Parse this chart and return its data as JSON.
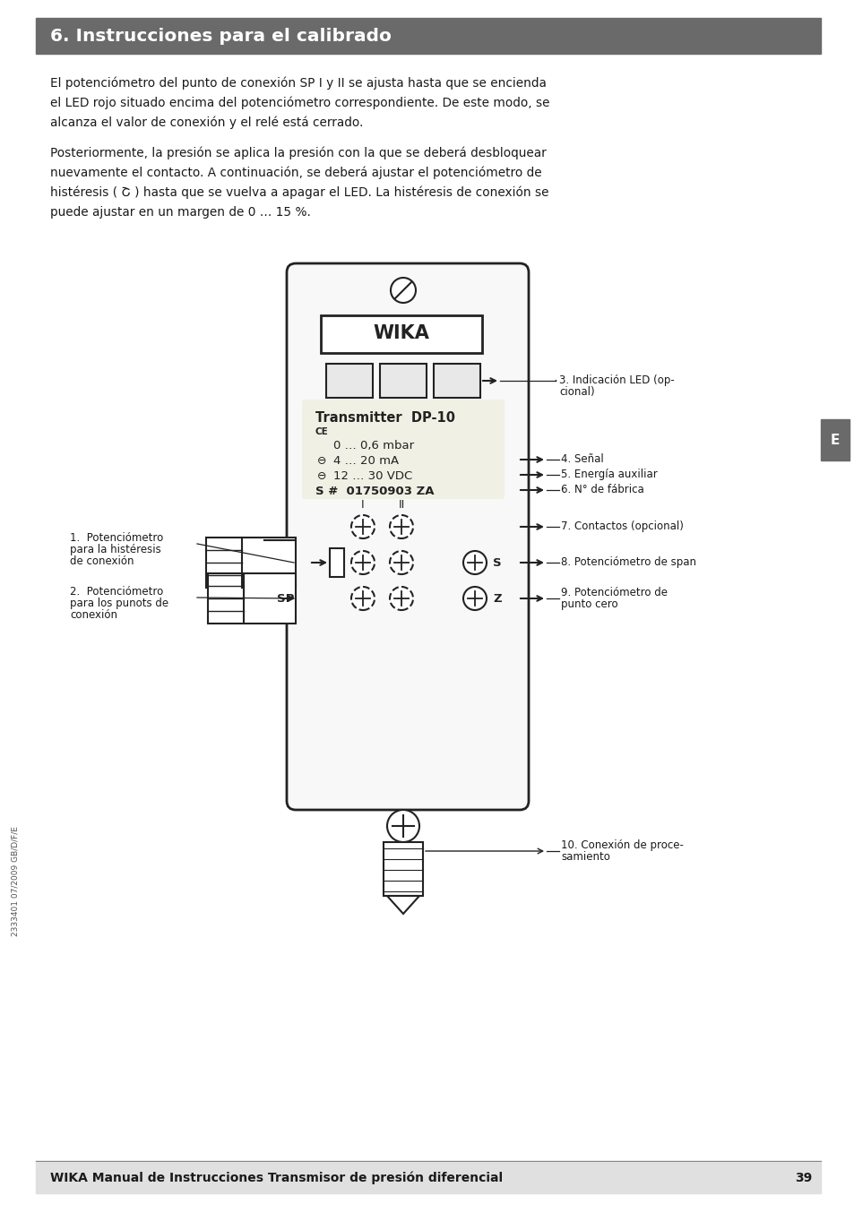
{
  "title": "6. Instrucciones para el calibrado",
  "title_bg": "#6a6a6a",
  "title_color": "#ffffff",
  "body_text_1": "El potenciómetro del punto de conexión SP I y II se ajusta hasta que se encienda\nel LED rojo situado encima del potenciómetro correspondiente. De este modo, se\nalcanza el valor de conexión y el relé está cerrado.",
  "body_text_2": "Posteriormente, la presión se aplica la presión con la que se deberá desbloquear\nnuevamente el contacto. A continuación, se deberá ajustar el potenciómetro de\nhistéresis ( Շ ) hasta que se vuelva a apagar el LED. La histéresis de conexión se\npuede ajustar en un margen de 0 … 15 %.",
  "side_tab_text": "E",
  "side_tab_bg": "#6a6a6a",
  "side_tab_color": "#ffffff",
  "footer_text": "WIKA Manual de Instrucciones Transmisor de presión diferencial",
  "footer_number": "39",
  "footer_bg": "#e0e0e0",
  "sidebar_text": "2333401 07/2009 GB/D/F/E",
  "label_1_line1": "1.  Potenciómetro",
  "label_1_line2": "para la histéresis",
  "label_1_line3": "de conexión",
  "label_2_line1": "2.  Potenciómetro",
  "label_2_line2": "para los punots de",
  "label_2_line3": "conexión",
  "label_3a": "3. Indicación LED (op-",
  "label_3b": "cional)",
  "label_4": "4. Señal",
  "label_5": "5. Energía auxiliar",
  "label_6": "6. N° de fábrica",
  "label_7": "7. Contactos (opcional)",
  "label_8": "8. Potenciómetro de span",
  "label_9a": "9. Potenciómetro de",
  "label_9b": "punto cero",
  "label_10a": "10. Conexión de proce-",
  "label_10b": "samiento",
  "bg_color": "#ffffff",
  "text_color": "#1a1a1a",
  "device_brand": "WIKA",
  "device_model": "Transmitter  DP-10",
  "device_ce": "CE",
  "device_line1": "0 … 0,6 mbar",
  "device_line2": "4 … 20 mA",
  "device_line3": "12 … 30 VDC",
  "device_line4": "S #  01750903 ZA",
  "device_label_bg": "#f0f0e8",
  "line_color": "#222222",
  "device_body_color": "#f8f8f8"
}
